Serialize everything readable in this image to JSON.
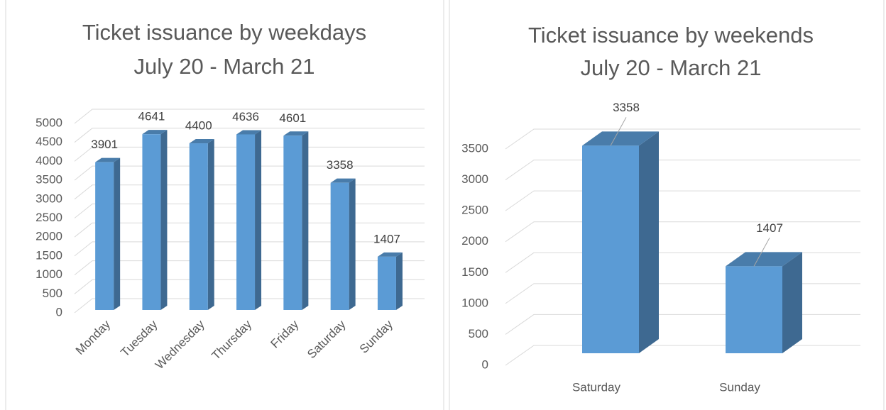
{
  "chart_data": [
    {
      "type": "bar",
      "title": "Ticket issuance by weekdays",
      "subtitle": "July 20 - March 21",
      "categories": [
        "Monday",
        "Tuesday",
        "Wednesday",
        "Thursday",
        "Friday",
        "Saturday",
        "Sunday"
      ],
      "values": [
        3901,
        4641,
        4400,
        4636,
        4601,
        3358,
        1407
      ],
      "color": "#5b9bd5",
      "ylim": [
        0,
        5000
      ],
      "yticks": [
        0,
        500,
        1000,
        1500,
        2000,
        2500,
        3000,
        3500,
        4000,
        4500,
        5000
      ],
      "grid": true
    },
    {
      "type": "bar",
      "title": "Ticket issuance by weekends",
      "subtitle": "July 20 - March 21",
      "categories": [
        "Saturday",
        "Sunday"
      ],
      "values": [
        3358,
        1407
      ],
      "color": "#5b9bd5",
      "ylim": [
        0,
        3500
      ],
      "yticks": [
        0,
        500,
        1000,
        1500,
        2000,
        2500,
        3000,
        3500
      ],
      "grid": true
    }
  ]
}
